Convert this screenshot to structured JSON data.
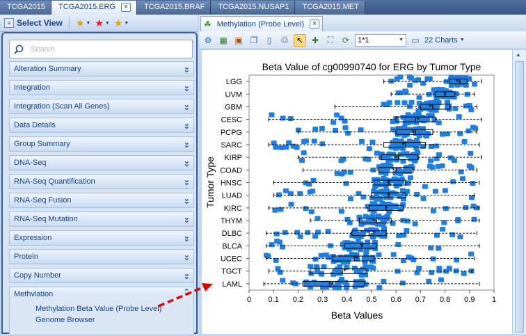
{
  "window_tabs": [
    {
      "label": "TCGA2015",
      "active": false
    },
    {
      "label": "TCGA2015.ERG",
      "active": true
    },
    {
      "label": "TCGA2015.BRAF",
      "active": false
    },
    {
      "label": "TCGA2015.NUSAP1",
      "active": false
    },
    {
      "label": "TCGA2015.MET",
      "active": false
    }
  ],
  "left_toolbar": {
    "select_view_label": "Select View"
  },
  "search": {
    "placeholder": "Search"
  },
  "sections": [
    "Alteration Summary",
    "Integration",
    "Integration (Scan All Genes)",
    "Data Details",
    "Group Summary",
    "DNA-Seq",
    "RNA-Seq Quantification",
    "RNA-Seq Fusion",
    "RNA-Seq Mutation",
    "Expression",
    "Protein",
    "Copy Number",
    "Methylation"
  ],
  "methylation_items": [
    "Methylation Beta Value (Probe Level)",
    "Genome Browser"
  ],
  "doc_tab": {
    "label": "Methylation (Probe Level)"
  },
  "toolbar": {
    "layout_value": "1*1",
    "charts_label": "22 Charts"
  },
  "colors": {
    "box_fill": "#1e7fe0",
    "annotation_arrow": "#e00000",
    "panel_border": "#355c95"
  },
  "chart_data": {
    "type": "box",
    "title": "Beta Value of cg00990740 for ERG by Tumor Type",
    "xlabel": "Beta Values",
    "ylabel": "Tumor Type",
    "xlim": [
      0,
      1
    ],
    "xticks": [
      "0",
      "0.1",
      "0.2",
      "0.3",
      "0.4",
      "0.5",
      "0.6",
      "0.7",
      "0.8",
      "0.9",
      "1"
    ],
    "categories": [
      "LGG",
      "UVM",
      "GBM",
      "CESC",
      "PCPG",
      "SARC",
      "KIRP",
      "COAD",
      "HNSC",
      "LUAD",
      "KIRC",
      "THYM",
      "DLBC",
      "BLCA",
      "UCEC",
      "TGCT",
      "LAML"
    ],
    "boxes": [
      {
        "name": "LGG",
        "min": 0.55,
        "q1": 0.82,
        "median": 0.86,
        "q3": 0.89,
        "max": 0.95,
        "mean": 0.85
      },
      {
        "name": "UVM",
        "min": 0.58,
        "q1": 0.76,
        "median": 0.8,
        "q3": 0.84,
        "max": 0.92,
        "mean": 0.8
      },
      {
        "name": "GBM",
        "min": 0.35,
        "q1": 0.7,
        "median": 0.75,
        "q3": 0.82,
        "max": 0.93,
        "mean": 0.74
      },
      {
        "name": "CESC",
        "min": 0.08,
        "q1": 0.6,
        "median": 0.68,
        "q3": 0.76,
        "max": 0.95,
        "mean": 0.69
      },
      {
        "name": "PCPG",
        "min": 0.2,
        "q1": 0.6,
        "median": 0.68,
        "q3": 0.75,
        "max": 0.93,
        "mean": 0.67
      },
      {
        "name": "SARC",
        "min": 0.08,
        "q1": 0.55,
        "median": 0.64,
        "q3": 0.72,
        "max": 0.94,
        "mean": 0.63
      },
      {
        "name": "KIRP",
        "min": 0.2,
        "q1": 0.54,
        "median": 0.61,
        "q3": 0.69,
        "max": 0.95,
        "mean": 0.6
      },
      {
        "name": "COAD",
        "min": 0.22,
        "q1": 0.53,
        "median": 0.6,
        "q3": 0.67,
        "max": 0.93,
        "mean": 0.59
      },
      {
        "name": "HNSC",
        "min": 0.1,
        "q1": 0.51,
        "median": 0.57,
        "q3": 0.64,
        "max": 0.94,
        "mean": 0.57
      },
      {
        "name": "LUAD",
        "min": 0.1,
        "q1": 0.5,
        "median": 0.57,
        "q3": 0.64,
        "max": 0.92,
        "mean": 0.57
      },
      {
        "name": "KIRC",
        "min": 0.08,
        "q1": 0.49,
        "median": 0.56,
        "q3": 0.63,
        "max": 0.94,
        "mean": 0.56
      },
      {
        "name": "THYM",
        "min": 0.25,
        "q1": 0.45,
        "median": 0.52,
        "q3": 0.58,
        "max": 0.94,
        "mean": 0.51
      },
      {
        "name": "DLBC",
        "min": 0.07,
        "q1": 0.42,
        "median": 0.49,
        "q3": 0.56,
        "max": 0.93,
        "mean": 0.51
      },
      {
        "name": "BLCA",
        "min": 0.07,
        "q1": 0.39,
        "median": 0.46,
        "q3": 0.52,
        "max": 0.94,
        "mean": 0.46
      },
      {
        "name": "UCEC",
        "min": 0.07,
        "q1": 0.34,
        "median": 0.43,
        "q3": 0.51,
        "max": 0.92,
        "mean": 0.44
      },
      {
        "name": "TGCT",
        "min": 0.08,
        "q1": 0.25,
        "median": 0.38,
        "q3": 0.48,
        "max": 0.91,
        "mean": 0.39
      },
      {
        "name": "LAML",
        "min": 0.06,
        "q1": 0.22,
        "median": 0.33,
        "q3": 0.47,
        "max": 0.94,
        "mean": 0.34
      }
    ]
  }
}
